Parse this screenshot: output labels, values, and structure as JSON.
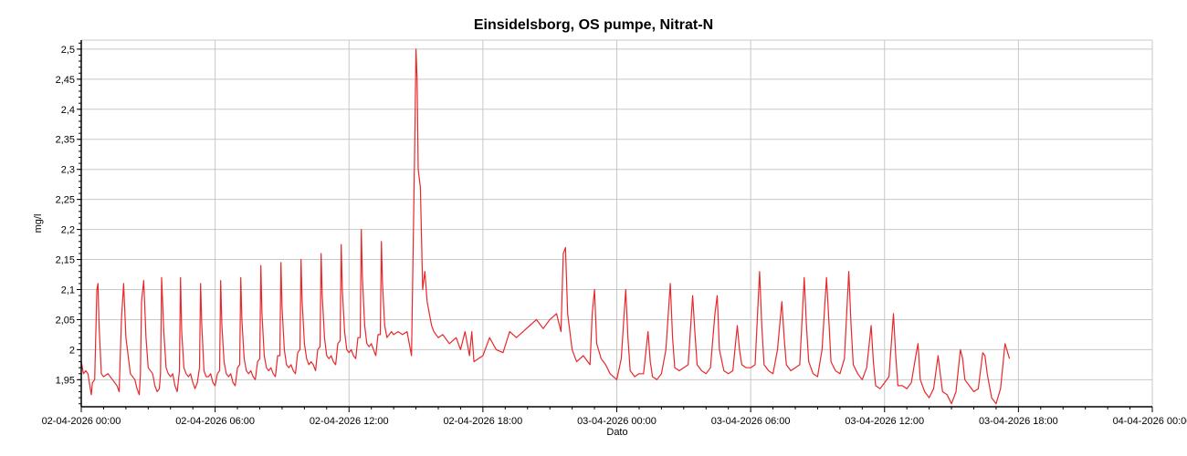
{
  "chart_data": {
    "type": "line",
    "title": "Einsidelsborg, OS pumpe, Nitrat-N",
    "xlabel": "Dato",
    "ylabel": "mg/l",
    "x_unit": "hours after 02-04-2026 00:00",
    "xlim": [
      0,
      48
    ],
    "ylim": [
      1.905,
      2.515
    ],
    "grid": true,
    "legend": "none",
    "x_ticks": [
      {
        "value": 0,
        "label": "02-04-2026 00:00"
      },
      {
        "value": 6,
        "label": "02-04-2026 06:00"
      },
      {
        "value": 12,
        "label": "02-04-2026 12:00"
      },
      {
        "value": 18,
        "label": "02-04-2026 18:00"
      },
      {
        "value": 24,
        "label": "03-04-2026 00:00"
      },
      {
        "value": 30,
        "label": "03-04-2026 06:00"
      },
      {
        "value": 36,
        "label": "03-04-2026 12:00"
      },
      {
        "value": 42,
        "label": "03-04-2026 18:00"
      },
      {
        "value": 48,
        "label": "04-04-2026 00:00"
      }
    ],
    "y_ticks": [
      {
        "value": 1.95,
        "label": "1,95"
      },
      {
        "value": 2.0,
        "label": "2"
      },
      {
        "value": 2.05,
        "label": "2,05"
      },
      {
        "value": 2.1,
        "label": "2,1"
      },
      {
        "value": 2.15,
        "label": "2,15"
      },
      {
        "value": 2.2,
        "label": "2,2"
      },
      {
        "value": 2.25,
        "label": "2,25"
      },
      {
        "value": 2.3,
        "label": "2,3"
      },
      {
        "value": 2.35,
        "label": "2,35"
      },
      {
        "value": 2.4,
        "label": "2,4"
      },
      {
        "value": 2.45,
        "label": "2,45"
      },
      {
        "value": 2.5,
        "label": "2,5"
      }
    ],
    "colors": {
      "series": "#e8282b",
      "grid": "#c8c8c8",
      "axis": "#000000"
    },
    "series": [
      {
        "name": "",
        "x": [
          0.0,
          0.1,
          0.2,
          0.3,
          0.45,
          0.5,
          0.6,
          0.7,
          0.75,
          0.8,
          0.9,
          1.0,
          1.2,
          1.4,
          1.6,
          1.7,
          1.8,
          1.9,
          2.0,
          2.2,
          2.4,
          2.5,
          2.6,
          2.65,
          2.7,
          2.8,
          2.9,
          3.0,
          3.2,
          3.3,
          3.4,
          3.5,
          3.55,
          3.6,
          3.7,
          3.8,
          3.9,
          4.0,
          4.1,
          4.2,
          4.3,
          4.4,
          4.45,
          4.5,
          4.6,
          4.7,
          4.8,
          4.9,
          5.0,
          5.1,
          5.2,
          5.3,
          5.35,
          5.4,
          5.5,
          5.6,
          5.7,
          5.8,
          5.9,
          6.0,
          6.1,
          6.2,
          6.25,
          6.3,
          6.4,
          6.5,
          6.6,
          6.7,
          6.8,
          6.9,
          7.0,
          7.1,
          7.15,
          7.2,
          7.3,
          7.4,
          7.5,
          7.6,
          7.7,
          7.8,
          7.9,
          8.0,
          8.05,
          8.1,
          8.2,
          8.3,
          8.4,
          8.5,
          8.6,
          8.7,
          8.8,
          8.9,
          8.95,
          9.0,
          9.1,
          9.2,
          9.3,
          9.4,
          9.5,
          9.6,
          9.7,
          9.8,
          9.85,
          9.9,
          10.0,
          10.1,
          10.2,
          10.3,
          10.4,
          10.5,
          10.6,
          10.7,
          10.75,
          10.8,
          10.9,
          11.0,
          11.1,
          11.2,
          11.3,
          11.4,
          11.5,
          11.6,
          11.65,
          11.7,
          11.8,
          11.9,
          12.0,
          12.1,
          12.2,
          12.3,
          12.4,
          12.5,
          12.55,
          12.6,
          12.7,
          12.8,
          12.9,
          13.0,
          13.1,
          13.2,
          13.3,
          13.4,
          13.45,
          13.5,
          13.6,
          13.7,
          13.8,
          13.9,
          14.0,
          14.2,
          14.4,
          14.6,
          14.8,
          14.95,
          15.0,
          15.05,
          15.1,
          15.2,
          15.3,
          15.4,
          15.5,
          15.6,
          15.7,
          15.8,
          16.0,
          16.2,
          16.5,
          16.8,
          17.0,
          17.2,
          17.4,
          17.5,
          17.6,
          17.8,
          18.0,
          18.3,
          18.6,
          18.9,
          19.2,
          19.5,
          19.8,
          20.1,
          20.4,
          20.7,
          21.0,
          21.3,
          21.5,
          21.6,
          21.7,
          21.8,
          22.0,
          22.2,
          22.5,
          22.8,
          22.9,
          23.0,
          23.1,
          23.3,
          23.5,
          23.7,
          24.0,
          24.2,
          24.4,
          24.5,
          24.6,
          24.8,
          25.0,
          25.2,
          25.4,
          25.5,
          25.6,
          25.8,
          26.0,
          26.2,
          26.4,
          26.5,
          26.6,
          26.8,
          27.0,
          27.2,
          27.4,
          27.5,
          27.6,
          27.8,
          28.0,
          28.2,
          28.4,
          28.5,
          28.6,
          28.8,
          29.0,
          29.2,
          29.4,
          29.5,
          29.6,
          29.8,
          30.0,
          30.2,
          30.4,
          30.5,
          30.6,
          30.8,
          31.0,
          31.2,
          31.4,
          31.5,
          31.6,
          31.8,
          32.0,
          32.2,
          32.4,
          32.5,
          32.6,
          32.8,
          33.0,
          33.2,
          33.4,
          33.5,
          33.6,
          33.8,
          34.0,
          34.2,
          34.4,
          34.5,
          34.6,
          34.8,
          35.0,
          35.2,
          35.4,
          35.5,
          35.6,
          35.8,
          36.0,
          36.2,
          36.4,
          36.5,
          36.6,
          36.8,
          37.0,
          37.2,
          37.4,
          37.5,
          37.6,
          37.8,
          38.0,
          38.2,
          38.4,
          38.5,
          38.6,
          38.8,
          39.0,
          39.2,
          39.4,
          39.5,
          39.6,
          39.8,
          40.0,
          40.2,
          40.4,
          40.5,
          40.6,
          40.8,
          41.0,
          41.2,
          41.4,
          41.6
        ],
        "y": [
          1.98,
          1.96,
          1.965,
          1.96,
          1.925,
          1.945,
          1.95,
          2.1,
          2.11,
          2.04,
          1.96,
          1.955,
          1.96,
          1.95,
          1.94,
          1.93,
          2.05,
          2.11,
          2.02,
          1.96,
          1.95,
          1.935,
          1.925,
          1.96,
          2.08,
          2.115,
          2.02,
          1.97,
          1.96,
          1.94,
          1.93,
          1.935,
          1.96,
          2.12,
          2.03,
          1.97,
          1.96,
          1.955,
          1.96,
          1.94,
          1.93,
          1.965,
          2.12,
          2.03,
          1.97,
          1.96,
          1.955,
          1.96,
          1.945,
          1.935,
          1.945,
          1.97,
          2.11,
          2.04,
          1.965,
          1.955,
          1.955,
          1.96,
          1.945,
          1.94,
          1.96,
          1.965,
          2.115,
          2.04,
          1.98,
          1.96,
          1.955,
          1.96,
          1.945,
          1.94,
          1.97,
          1.975,
          2.12,
          2.05,
          1.985,
          1.965,
          1.96,
          1.965,
          1.955,
          1.95,
          1.98,
          1.985,
          2.14,
          2.06,
          1.99,
          1.97,
          1.965,
          1.97,
          1.96,
          1.955,
          1.99,
          1.99,
          2.145,
          2.07,
          2.0,
          1.975,
          1.97,
          1.975,
          1.965,
          1.96,
          1.995,
          2.0,
          2.15,
          2.08,
          2.01,
          1.985,
          1.975,
          1.98,
          1.975,
          1.965,
          2.0,
          2.005,
          2.16,
          2.09,
          2.02,
          1.99,
          1.985,
          1.99,
          1.98,
          1.975,
          2.01,
          2.015,
          2.175,
          2.1,
          2.03,
          2.0,
          1.995,
          2.0,
          1.99,
          1.985,
          2.02,
          2.02,
          2.2,
          2.12,
          2.04,
          2.01,
          2.005,
          2.01,
          2.0,
          1.99,
          2.025,
          2.025,
          2.18,
          2.11,
          2.04,
          2.02,
          2.025,
          2.03,
          2.025,
          2.03,
          2.025,
          2.03,
          1.99,
          2.35,
          2.5,
          2.45,
          2.3,
          2.27,
          2.1,
          2.13,
          2.08,
          2.06,
          2.04,
          2.03,
          2.02,
          2.025,
          2.01,
          2.02,
          2.0,
          2.03,
          1.99,
          2.03,
          1.98,
          1.985,
          1.99,
          2.02,
          2.0,
          1.995,
          2.03,
          2.02,
          2.03,
          2.04,
          2.05,
          2.035,
          2.05,
          2.06,
          2.03,
          2.16,
          2.17,
          2.06,
          2.0,
          1.98,
          1.99,
          1.975,
          2.06,
          2.1,
          2.01,
          1.985,
          1.975,
          1.96,
          1.95,
          1.985,
          2.1,
          2.02,
          1.965,
          1.955,
          1.96,
          1.96,
          2.03,
          1.98,
          1.955,
          1.95,
          1.96,
          2.0,
          2.11,
          2.02,
          1.97,
          1.965,
          1.97,
          1.975,
          2.09,
          2.03,
          1.975,
          1.965,
          1.96,
          1.97,
          2.06,
          2.09,
          2.0,
          1.965,
          1.96,
          1.965,
          2.04,
          2.0,
          1.975,
          1.97,
          1.97,
          1.975,
          2.13,
          2.04,
          1.975,
          1.965,
          1.96,
          2.0,
          2.08,
          2.02,
          1.975,
          1.965,
          1.97,
          1.975,
          2.12,
          2.04,
          1.98,
          1.96,
          1.955,
          2.0,
          2.12,
          2.05,
          1.98,
          1.965,
          1.96,
          1.985,
          2.13,
          2.04,
          1.975,
          1.96,
          1.95,
          1.97,
          2.04,
          1.98,
          1.94,
          1.935,
          1.945,
          1.955,
          2.06,
          1.99,
          1.94,
          1.94,
          1.935,
          1.945,
          1.99,
          2.01,
          1.95,
          1.93,
          1.92,
          1.935,
          1.99,
          1.96,
          1.93,
          1.925,
          1.91,
          1.93,
          2.0,
          1.985,
          1.95,
          1.94,
          1.93,
          1.935,
          1.995,
          1.99,
          1.96,
          1.92,
          1.91,
          1.935,
          2.01,
          1.985
        ]
      }
    ]
  }
}
